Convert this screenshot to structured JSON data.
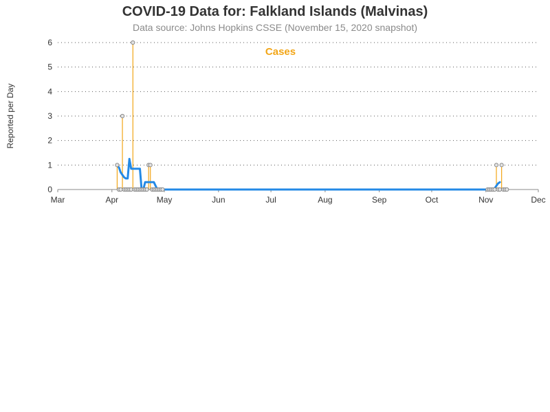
{
  "colors": {
    "cases": "#f2a516",
    "average": "#2389e6",
    "marker_fill": "#e3e3e3",
    "marker_stroke": "#888888",
    "grid": "#555555",
    "axis": "#888888"
  },
  "chart_data": {
    "type": "line",
    "title": "COVID-19 Data for: Falkland Islands (Malvinas)",
    "subtitle": "Data source: Johns Hopkins CSSE (November 15, 2020 snapshot)",
    "ylabel": "Reported per Day",
    "xlabel": "",
    "legend": {
      "label": "Cases",
      "placement": "top-center"
    },
    "grid": {
      "horizontal": true,
      "style": "dotted"
    },
    "xlim": [
      "2020-03-01",
      "2020-12-01"
    ],
    "ylim": [
      0,
      6
    ],
    "y_ticks": [
      0,
      1,
      2,
      3,
      4,
      5,
      6
    ],
    "x_ticks": [
      {
        "label": "Mar",
        "date": "2020-03-01"
      },
      {
        "label": "Apr",
        "date": "2020-04-01"
      },
      {
        "label": "May",
        "date": "2020-05-01"
      },
      {
        "label": "Jun",
        "date": "2020-06-01"
      },
      {
        "label": "Jul",
        "date": "2020-07-01"
      },
      {
        "label": "Aug",
        "date": "2020-08-01"
      },
      {
        "label": "Sep",
        "date": "2020-09-01"
      },
      {
        "label": "Oct",
        "date": "2020-10-01"
      },
      {
        "label": "Nov",
        "date": "2020-11-01"
      },
      {
        "label": "Dec",
        "date": "2020-12-01"
      }
    ],
    "series": [
      {
        "name": "Cases",
        "style": "needle",
        "points": [
          {
            "date": "2020-04-04",
            "value": 1
          },
          {
            "date": "2020-04-05",
            "value": 0
          },
          {
            "date": "2020-04-06",
            "value": 0
          },
          {
            "date": "2020-04-07",
            "value": 3
          },
          {
            "date": "2020-04-08",
            "value": 0
          },
          {
            "date": "2020-04-09",
            "value": 0
          },
          {
            "date": "2020-04-10",
            "value": 0
          },
          {
            "date": "2020-04-11",
            "value": 0
          },
          {
            "date": "2020-04-12",
            "value": 0
          },
          {
            "date": "2020-04-13",
            "value": 6
          },
          {
            "date": "2020-04-14",
            "value": 0
          },
          {
            "date": "2020-04-15",
            "value": 0
          },
          {
            "date": "2020-04-16",
            "value": 0
          },
          {
            "date": "2020-04-17",
            "value": 0
          },
          {
            "date": "2020-04-18",
            "value": 0
          },
          {
            "date": "2020-04-19",
            "value": 0
          },
          {
            "date": "2020-04-20",
            "value": 0
          },
          {
            "date": "2020-04-21",
            "value": 0
          },
          {
            "date": "2020-04-22",
            "value": 1
          },
          {
            "date": "2020-04-23",
            "value": 1
          },
          {
            "date": "2020-04-24",
            "value": 0
          },
          {
            "date": "2020-04-25",
            "value": 0
          },
          {
            "date": "2020-04-26",
            "value": 0
          },
          {
            "date": "2020-04-27",
            "value": 0
          },
          {
            "date": "2020-04-28",
            "value": 0
          },
          {
            "date": "2020-04-29",
            "value": 0
          },
          {
            "date": "2020-04-30",
            "value": 0
          },
          {
            "date": "2020-11-02",
            "value": 0
          },
          {
            "date": "2020-11-03",
            "value": 0
          },
          {
            "date": "2020-11-04",
            "value": 0
          },
          {
            "date": "2020-11-05",
            "value": 0
          },
          {
            "date": "2020-11-06",
            "value": 0
          },
          {
            "date": "2020-11-07",
            "value": 1
          },
          {
            "date": "2020-11-08",
            "value": 0
          },
          {
            "date": "2020-11-09",
            "value": 0
          },
          {
            "date": "2020-11-10",
            "value": 1
          },
          {
            "date": "2020-11-11",
            "value": 0
          },
          {
            "date": "2020-11-12",
            "value": 0
          },
          {
            "date": "2020-11-13",
            "value": 0
          }
        ]
      },
      {
        "style": "line",
        "points": [
          {
            "date": "2020-04-04",
            "value": 1.0
          },
          {
            "date": "2020-04-05",
            "value": 0.9
          },
          {
            "date": "2020-04-06",
            "value": 0.7
          },
          {
            "date": "2020-04-07",
            "value": 0.6
          },
          {
            "date": "2020-04-08",
            "value": 0.5
          },
          {
            "date": "2020-04-09",
            "value": 0.45
          },
          {
            "date": "2020-04-10",
            "value": 0.45
          },
          {
            "date": "2020-04-11",
            "value": 1.25
          },
          {
            "date": "2020-04-12",
            "value": 0.85
          },
          {
            "date": "2020-04-13",
            "value": 0.85
          },
          {
            "date": "2020-04-14",
            "value": 0.85
          },
          {
            "date": "2020-04-15",
            "value": 0.85
          },
          {
            "date": "2020-04-16",
            "value": 0.85
          },
          {
            "date": "2020-04-17",
            "value": 0.85
          },
          {
            "date": "2020-04-18",
            "value": 0.0
          },
          {
            "date": "2020-04-19",
            "value": 0.0
          },
          {
            "date": "2020-04-20",
            "value": 0.3
          },
          {
            "date": "2020-04-21",
            "value": 0.3
          },
          {
            "date": "2020-04-22",
            "value": 0.3
          },
          {
            "date": "2020-04-23",
            "value": 0.3
          },
          {
            "date": "2020-04-24",
            "value": 0.3
          },
          {
            "date": "2020-04-25",
            "value": 0.3
          },
          {
            "date": "2020-04-26",
            "value": 0.15
          },
          {
            "date": "2020-04-27",
            "value": 0.0
          },
          {
            "date": "2020-05-15",
            "value": 0.0
          },
          {
            "date": "2020-06-15",
            "value": 0.0
          },
          {
            "date": "2020-07-15",
            "value": 0.0
          },
          {
            "date": "2020-08-15",
            "value": 0.0
          },
          {
            "date": "2020-09-15",
            "value": 0.0
          },
          {
            "date": "2020-10-15",
            "value": 0.0
          },
          {
            "date": "2020-11-05",
            "value": 0.0
          },
          {
            "date": "2020-11-06",
            "value": 0.05
          },
          {
            "date": "2020-11-07",
            "value": 0.15
          },
          {
            "date": "2020-11-08",
            "value": 0.25
          },
          {
            "date": "2020-11-09",
            "value": 0.3
          }
        ]
      }
    ]
  }
}
